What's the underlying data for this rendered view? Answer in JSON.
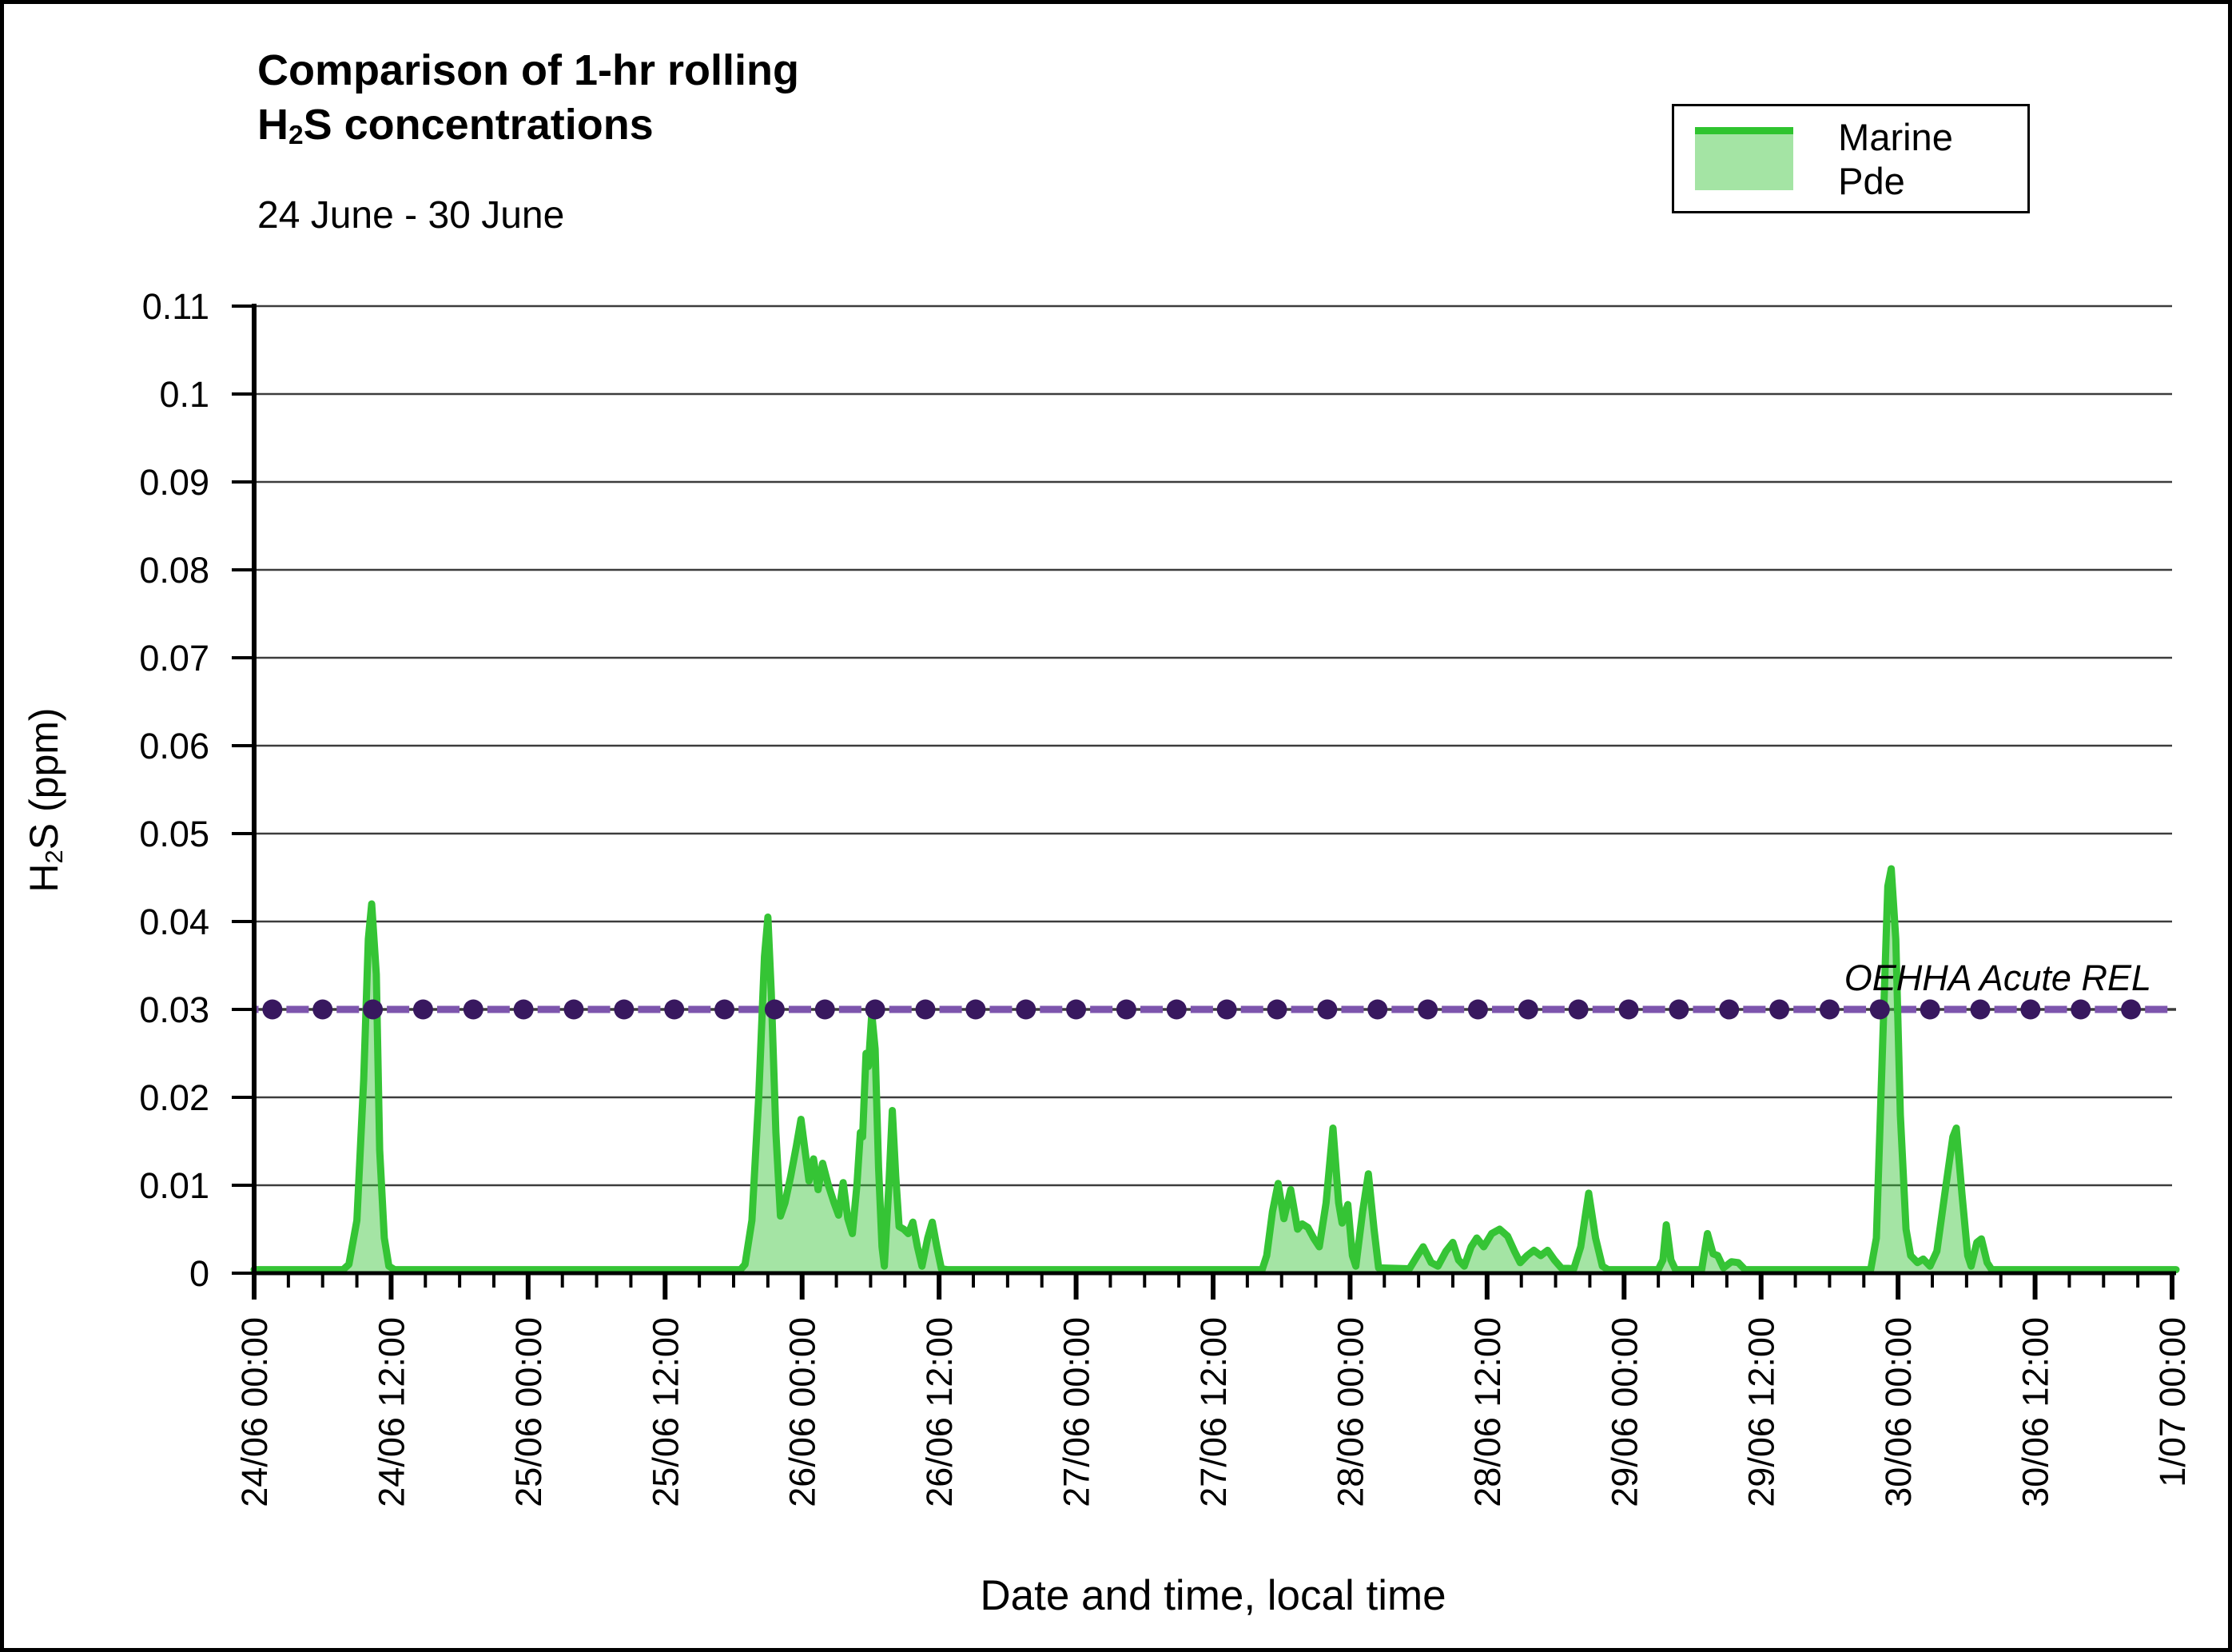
{
  "header": {
    "title_line1": "Comparison of 1-hr rolling",
    "title_h": "H",
    "title_sub": "2",
    "title_rest": "S concentrations",
    "subtitle": "24 June - 30 June"
  },
  "legend": {
    "label": "Marine Pde"
  },
  "axes": {
    "y_title_pre": "H",
    "y_title_sub": "2",
    "y_title_post": "S (ppm)",
    "x_title": "Date and time, local time"
  },
  "ref_line_label": "OEHHA Acute REL",
  "colors": {
    "series_line": "#35c435",
    "series_fill": "rgba(53,196,53,0.45)",
    "ref_base_line": "#3a3a3a",
    "ref_dash": "#7d55ad",
    "ref_dot": "#38185f",
    "gridline": "#3c3c3c",
    "axis": "#000000"
  },
  "chart_data": {
    "type": "area",
    "title": "Comparison of 1-hr rolling H2S concentrations",
    "subtitle": "24 June - 30 June",
    "xlabel": "Date and time, local time",
    "ylabel": "H2S (ppm)",
    "ylim": [
      0,
      0.11
    ],
    "ytick_step": 0.01,
    "ytick_labels": [
      "0",
      "0.01",
      "0.02",
      "0.03",
      "0.04",
      "0.05",
      "0.06",
      "0.07",
      "0.08",
      "0.09",
      "0.1",
      "0.11"
    ],
    "x_hours_range": [
      0,
      168
    ],
    "xtick_major_every_h": 12,
    "xtick_minor_every_h": 3,
    "xtick_labels": [
      "24/06 00:00",
      "24/06 12:00",
      "25/06 00:00",
      "25/06 12:00",
      "26/06 00:00",
      "26/06 12:00",
      "27/06 00:00",
      "27/06 12:00",
      "28/06 00:00",
      "28/06 12:00",
      "29/06 00:00",
      "29/06 12:00",
      "30/06 00:00",
      "30/06 12:00",
      "1/07 00:00"
    ],
    "grid": "horizontal",
    "legend_position": "top-right",
    "ref_series": {
      "name": "OEHHA Acute REL",
      "value": 0.03,
      "marker_start_h": 1.6,
      "marker_step_h": 4.4,
      "marker_count": 38
    },
    "series": [
      {
        "name": "Marine Pde",
        "points_h_ppm": [
          [
            0,
            0.0004
          ],
          [
            7.8,
            0.0004
          ],
          [
            8.3,
            0.001
          ],
          [
            9,
            0.006
          ],
          [
            9.6,
            0.022
          ],
          [
            10,
            0.038
          ],
          [
            10.3,
            0.042
          ],
          [
            10.7,
            0.034
          ],
          [
            11,
            0.014
          ],
          [
            11.4,
            0.004
          ],
          [
            11.8,
            0.0008
          ],
          [
            12.3,
            0.0004
          ],
          [
            42.6,
            0.0004
          ],
          [
            43,
            0.001
          ],
          [
            43.6,
            0.006
          ],
          [
            44.2,
            0.02
          ],
          [
            44.7,
            0.036
          ],
          [
            45,
            0.0405
          ],
          [
            45.3,
            0.032
          ],
          [
            45.7,
            0.016
          ],
          [
            46.1,
            0.0065
          ],
          [
            46.5,
            0.008
          ],
          [
            47,
            0.011
          ],
          [
            47.5,
            0.0145
          ],
          [
            47.9,
            0.0175
          ],
          [
            48.3,
            0.0135
          ],
          [
            48.6,
            0.0105
          ],
          [
            49,
            0.013
          ],
          [
            49.4,
            0.0095
          ],
          [
            49.8,
            0.0125
          ],
          [
            50.3,
            0.01
          ],
          [
            50.8,
            0.008
          ],
          [
            51.2,
            0.0066
          ],
          [
            51.6,
            0.0103
          ],
          [
            52,
            0.0062
          ],
          [
            52.4,
            0.0045
          ],
          [
            52.8,
            0.01
          ],
          [
            53.1,
            0.016
          ],
          [
            53.3,
            0.0155
          ],
          [
            53.6,
            0.025
          ],
          [
            53.8,
            0.0235
          ],
          [
            54.1,
            0.0295
          ],
          [
            54.4,
            0.0255
          ],
          [
            54.7,
            0.012
          ],
          [
            55,
            0.003
          ],
          [
            55.2,
            0.0008
          ],
          [
            55.6,
            0.01
          ],
          [
            55.9,
            0.0185
          ],
          [
            56.2,
            0.011
          ],
          [
            56.5,
            0.0053
          ],
          [
            56.9,
            0.005
          ],
          [
            57.3,
            0.0045
          ],
          [
            57.7,
            0.0058
          ],
          [
            58.1,
            0.003
          ],
          [
            58.5,
            0.0008
          ],
          [
            59,
            0.004
          ],
          [
            59.4,
            0.0058
          ],
          [
            59.8,
            0.003
          ],
          [
            60.2,
            0.0005
          ],
          [
            60.7,
            0.0004
          ],
          [
            88.3,
            0.0004
          ],
          [
            88.7,
            0.002
          ],
          [
            89.2,
            0.007
          ],
          [
            89.7,
            0.0102
          ],
          [
            90.2,
            0.0062
          ],
          [
            90.8,
            0.0095
          ],
          [
            91.4,
            0.005
          ],
          [
            91.8,
            0.0056
          ],
          [
            92.3,
            0.0052
          ],
          [
            92.8,
            0.004
          ],
          [
            93.3,
            0.003
          ],
          [
            93.9,
            0.008
          ],
          [
            94.5,
            0.0165
          ],
          [
            95,
            0.008
          ],
          [
            95.3,
            0.0057
          ],
          [
            95.8,
            0.0078
          ],
          [
            96.2,
            0.002
          ],
          [
            96.5,
            0.0008
          ],
          [
            97.1,
            0.007
          ],
          [
            97.6,
            0.0113
          ],
          [
            98.1,
            0.005
          ],
          [
            98.5,
            0.0006
          ],
          [
            101.2,
            0.0005
          ],
          [
            101.9,
            0.002
          ],
          [
            102.4,
            0.003
          ],
          [
            103.1,
            0.0012
          ],
          [
            103.7,
            0.0008
          ],
          [
            104.4,
            0.0025
          ],
          [
            105,
            0.0035
          ],
          [
            105.5,
            0.0015
          ],
          [
            106,
            0.0008
          ],
          [
            106.6,
            0.003
          ],
          [
            107.1,
            0.004
          ],
          [
            107.7,
            0.003
          ],
          [
            108.4,
            0.0045
          ],
          [
            109.1,
            0.005
          ],
          [
            109.8,
            0.0042
          ],
          [
            110.4,
            0.0025
          ],
          [
            110.9,
            0.0012
          ],
          [
            111.5,
            0.002
          ],
          [
            112.1,
            0.0026
          ],
          [
            112.7,
            0.002
          ],
          [
            113.3,
            0.0026
          ],
          [
            113.9,
            0.0015
          ],
          [
            114.5,
            0.0006
          ],
          [
            115.6,
            0.0005
          ],
          [
            116.2,
            0.003
          ],
          [
            116.9,
            0.0091
          ],
          [
            117.5,
            0.004
          ],
          [
            118.1,
            0.0008
          ],
          [
            118.6,
            0.0004
          ],
          [
            123,
            0.0004
          ],
          [
            123.4,
            0.0015
          ],
          [
            123.7,
            0.0055
          ],
          [
            124.1,
            0.0015
          ],
          [
            124.5,
            0.0004
          ],
          [
            126.8,
            0.0004
          ],
          [
            127.3,
            0.0045
          ],
          [
            127.8,
            0.0022
          ],
          [
            128.2,
            0.002
          ],
          [
            128.7,
            0.0006
          ],
          [
            129.4,
            0.0013
          ],
          [
            130,
            0.0012
          ],
          [
            130.6,
            0.0004
          ],
          [
            141.6,
            0.0004
          ],
          [
            142.1,
            0.004
          ],
          [
            142.6,
            0.024
          ],
          [
            143.1,
            0.044
          ],
          [
            143.4,
            0.046
          ],
          [
            143.8,
            0.038
          ],
          [
            144.2,
            0.018
          ],
          [
            144.7,
            0.005
          ],
          [
            145.1,
            0.002
          ],
          [
            145.7,
            0.0012
          ],
          [
            146.2,
            0.0016
          ],
          [
            146.8,
            0.0008
          ],
          [
            147.4,
            0.0025
          ],
          [
            148.2,
            0.01
          ],
          [
            148.8,
            0.0155
          ],
          [
            149.1,
            0.0165
          ],
          [
            149.6,
            0.009
          ],
          [
            150.1,
            0.002
          ],
          [
            150.4,
            0.0008
          ],
          [
            150.9,
            0.0035
          ],
          [
            151.3,
            0.0039
          ],
          [
            151.8,
            0.0012
          ],
          [
            152.2,
            0.0004
          ],
          [
            168.35,
            0.0004
          ]
        ]
      }
    ]
  }
}
